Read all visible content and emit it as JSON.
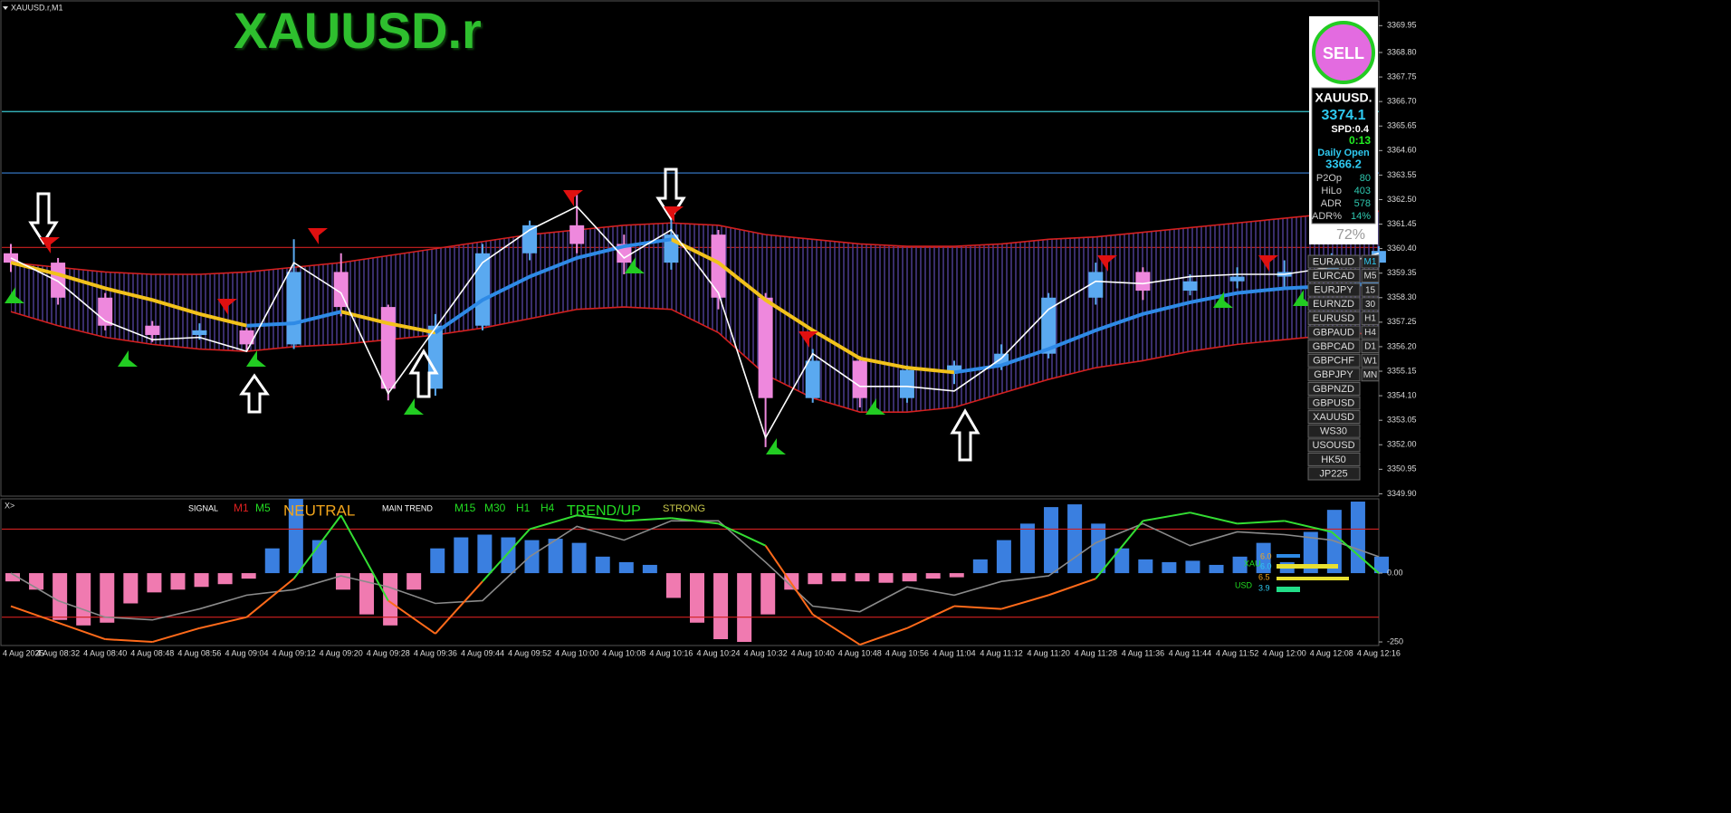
{
  "window_title": "XAUUSD.r,M1",
  "symbol_title": "XAUUSD.r",
  "panel": {
    "signal": "SELL",
    "symbol": "XAUUSD.",
    "price": "3374.1",
    "spread": "SPD:0.4",
    "timer": "0:13",
    "daily_open_label": "Daily Open",
    "daily_open": "3366.2",
    "stats": [
      [
        "P2Op",
        "80"
      ],
      [
        "HiLo",
        "403"
      ],
      [
        "ADR",
        "578"
      ],
      [
        "ADR%",
        "14%"
      ]
    ],
    "percent": "72%"
  },
  "symbols": [
    "EURAUD",
    "EURCAD",
    "EURJPY",
    "EURNZD",
    "EURUSD",
    "GBPAUD",
    "GBPCAD",
    "GBPCHF",
    "GBPJPY",
    "GBPNZD",
    "GBPUSD",
    "XAUUSD",
    "WS30",
    "USOUSD",
    "HK50",
    "JP225"
  ],
  "timeframes": [
    "M1",
    "M5",
    "15",
    "30",
    "H1",
    "H4",
    "D1",
    "W1",
    "MN"
  ],
  "oscillator_labels": {
    "prefix": "X>",
    "signal": "SIGNAL",
    "m1": "M1",
    "m5": "M5",
    "state": "NEUTRAL",
    "main_trend": "MAIN TREND",
    "m15": "M15",
    "m30": "M30",
    "h1": "H1",
    "h4": "H4",
    "trend": "TREND/UP",
    "strength": "STRONG"
  },
  "strength_meter": {
    "base": "XAU",
    "quote": "USD",
    "base_1": "6.0",
    "base_2": "6.0",
    "quote_1": "6.5",
    "quote_2": "3.9"
  },
  "chart_data": [
    {
      "type": "candlestick",
      "categories": [
        "4 Aug 2025",
        "4 Aug 08:32",
        "4 Aug 08:40",
        "4 Aug 08:48",
        "4 Aug 08:56",
        "4 Aug 09:04",
        "4 Aug 09:12",
        "4 Aug 09:20",
        "4 Aug 09:28",
        "4 Aug 09:36",
        "4 Aug 09:44",
        "4 Aug 09:52",
        "4 Aug 10:00",
        "4 Aug 10:08",
        "4 Aug 10:16",
        "4 Aug 10:24",
        "4 Aug 10:32",
        "4 Aug 10:40",
        "4 Aug 10:48",
        "4 Aug 10:56",
        "4 Aug 11:04",
        "4 Aug 11:12",
        "4 Aug 11:20",
        "4 Aug 11:28",
        "4 Aug 11:36",
        "4 Aug 11:44",
        "4 Aug 11:52",
        "4 Aug 12:00",
        "4 Aug 12:08",
        "4 Aug 12:16"
      ],
      "open": [
        3360.2,
        3359.8,
        3358.3,
        3357.1,
        3356.7,
        3356.9,
        3356.3,
        3359.4,
        3357.9,
        3354.4,
        3357.1,
        3360.2,
        3361.4,
        3360.6,
        3359.8,
        3361.0,
        3358.3,
        3354.0,
        3355.6,
        3354.0,
        3355.1,
        3355.4,
        3355.9,
        3358.3,
        3359.4,
        3358.6,
        3359.0,
        3359.2,
        3359.4,
        3359.8
      ],
      "high": [
        3360.6,
        3360.0,
        3358.5,
        3357.3,
        3357.2,
        3357.0,
        3360.8,
        3360.2,
        3358.0,
        3357.6,
        3360.6,
        3361.6,
        3362.7,
        3361.0,
        3361.9,
        3361.2,
        3358.5,
        3356.1,
        3355.8,
        3355.4,
        3355.6,
        3356.3,
        3358.5,
        3359.8,
        3359.6,
        3359.3,
        3359.6,
        3359.9,
        3360.2,
        3360.5
      ],
      "low": [
        3359.4,
        3358.0,
        3356.9,
        3356.4,
        3356.5,
        3356.0,
        3356.1,
        3357.5,
        3353.9,
        3354.1,
        3356.9,
        3359.9,
        3360.2,
        3359.3,
        3359.5,
        3357.8,
        3351.9,
        3353.8,
        3353.6,
        3353.8,
        3354.6,
        3355.2,
        3355.7,
        3358.0,
        3358.2,
        3358.4,
        3358.7,
        3358.7,
        3359.2,
        3359.6
      ],
      "close": [
        3359.8,
        3358.3,
        3357.1,
        3356.7,
        3356.9,
        3356.3,
        3359.4,
        3357.9,
        3354.4,
        3357.1,
        3360.2,
        3361.4,
        3360.6,
        3359.8,
        3361.0,
        3358.3,
        3354.0,
        3355.6,
        3354.0,
        3355.2,
        3355.4,
        3355.9,
        3358.3,
        3359.4,
        3358.6,
        3359.0,
        3359.2,
        3359.4,
        3359.8,
        3360.3
      ],
      "up_color": "#5aa9f0",
      "down_color": "#ee88dd",
      "ylim": [
        3349.8,
        3370.35
      ],
      "yticks": [
        3369.95,
        {
          "value": 3368.8,
          "label": "3368.80"
        },
        3367.75,
        {
          "value": 3366.7,
          "label": "3366.70"
        },
        3365.65,
        {
          "value": 3364.6,
          "label": "3364.60"
        },
        3363.55,
        {
          "value": 3362.5,
          "label": "3362.50"
        },
        3361.45,
        {
          "value": 3360.4,
          "label": "3360.40"
        },
        3359.35,
        {
          "value": 3358.3,
          "label": "3358.30"
        },
        3357.25,
        {
          "value": 3356.2,
          "label": "3356.20"
        },
        3355.15,
        {
          "value": 3354.1,
          "label": "3354.10"
        },
        3353.05,
        {
          "value": 3352,
          "label": "3352.00"
        },
        3350.95,
        {
          "value": 3349.9,
          "label": "3349.90"
        }
      ],
      "levels": [
        {
          "value": 3366.27,
          "color": "#3cc8d0"
        },
        {
          "value": 3363.64,
          "color": "#3a7fd5"
        },
        {
          "value": 3360.45,
          "color": "#d02020"
        }
      ],
      "bands": {
        "color": "#d42020",
        "upper": [
          3359.8,
          3359.6,
          3359.4,
          3359.3,
          3359.3,
          3359.4,
          3359.6,
          3359.8,
          3360.1,
          3360.4,
          3360.7,
          3361.0,
          3361.2,
          3361.4,
          3361.5,
          3361.4,
          3361.0,
          3360.8,
          3360.6,
          3360.5,
          3360.5,
          3360.6,
          3360.8,
          3360.9,
          3361.1,
          3361.3,
          3361.5,
          3361.7,
          3361.9,
          3362.0
        ],
        "lower": [
          3357.7,
          3357.1,
          3356.6,
          3356.3,
          3356.1,
          3356.0,
          3356.2,
          3356.3,
          3356.5,
          3356.7,
          3357.0,
          3357.4,
          3357.8,
          3357.9,
          3357.8,
          3356.8,
          3355.0,
          3354.0,
          3353.4,
          3353.4,
          3353.6,
          3354.2,
          3354.8,
          3355.3,
          3355.6,
          3356.0,
          3356.3,
          3356.5,
          3356.7,
          3356.8
        ]
      },
      "lines": [
        {
          "color": "#f2c21b",
          "values": [
            3359.8,
            3359.3,
            3358.7,
            3358.2,
            3357.6,
            3357.1,
            null,
            3357.7,
            3357.2,
            3356.8,
            null,
            null,
            null,
            null,
            3360.8,
            3359.8,
            3358.2,
            3356.9,
            3355.7,
            3355.3,
            3355.1,
            null,
            null,
            null,
            null,
            null,
            null,
            null,
            null,
            null
          ]
        },
        {
          "color": "#2e8ae6",
          "values": [
            null,
            null,
            null,
            null,
            null,
            3357.1,
            3357.2,
            3357.7,
            null,
            3356.8,
            3358.2,
            3359.2,
            3360.0,
            3360.5,
            3360.8,
            null,
            null,
            null,
            null,
            null,
            3355.1,
            3355.4,
            3356.1,
            3356.9,
            3357.6,
            3358.1,
            3358.5,
            3358.7,
            3358.8,
            3358.9
          ]
        },
        {
          "color": "#ffffff",
          "values": [
            3360.0,
            3359.0,
            3357.3,
            3356.5,
            3356.6,
            3356.0,
            3359.8,
            3358.5,
            3354.2,
            3357.0,
            3359.8,
            3361.2,
            3362.2,
            3360.0,
            3361.2,
            3358.5,
            3352.3,
            3355.9,
            3354.5,
            3354.5,
            3354.3,
            3355.7,
            3357.8,
            3359.0,
            3358.9,
            3359.2,
            3359.3,
            3359.3,
            3359.6,
            3360.2
          ]
        }
      ]
    },
    {
      "type": "bar",
      "values": [
        -30,
        -60,
        -170,
        -190,
        -180,
        -110,
        -70,
        -60,
        -50,
        -40,
        -20,
        90,
        270,
        120,
        -60,
        -150,
        -190,
        -60,
        90,
        130,
        140,
        130,
        120,
        125,
        110,
        60,
        40,
        30,
        -90,
        -180,
        -240,
        -250,
        -150,
        -60,
        -40,
        -30,
        -30,
        -35,
        -30,
        -20,
        -15,
        50,
        120,
        180,
        240,
        250,
        180,
        90,
        50,
        40,
        45,
        30,
        60,
        110,
        40,
        150,
        230,
        260,
        60
      ],
      "pos_color": "#3a7fe0",
      "neg_color": "#f07ab0",
      "ylim": [
        -263,
        270
      ],
      "yticks": [
        {
          "value": 0,
          "label": "0.00"
        },
        -250
      ],
      "levels": [
        {
          "value": 160,
          "color": "#d02020"
        },
        {
          "value": -160,
          "color": "#d02020"
        }
      ],
      "lines": [
        {
          "color": "#8a8a8a",
          "values": [
            0,
            -100,
            -160,
            -170,
            -130,
            -80,
            -60,
            -10,
            -50,
            -110,
            -100,
            60,
            170,
            120,
            190,
            190,
            40,
            -120,
            -140,
            -50,
            -80,
            -30,
            -10,
            110,
            180,
            100,
            150,
            140,
            120,
            60
          ]
        },
        {
          "pos_color": "#33dd33",
          "neg_color": "#ff6a1a",
          "values": [
            -120,
            -180,
            -240,
            -250,
            -200,
            -160,
            -20,
            210,
            -100,
            -220,
            -30,
            160,
            210,
            190,
            200,
            180,
            100,
            -150,
            -260,
            -200,
            -120,
            -130,
            -80,
            -20,
            190,
            220,
            180,
            190,
            150,
            0
          ]
        }
      ]
    }
  ]
}
